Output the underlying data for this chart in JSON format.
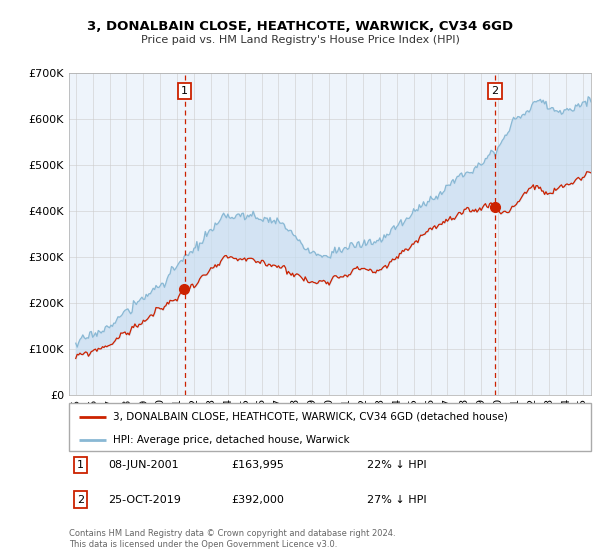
{
  "title": "3, DONALBAIN CLOSE, HEATHCOTE, WARWICK, CV34 6GD",
  "subtitle": "Price paid vs. HM Land Registry's House Price Index (HPI)",
  "legend_line1": "3, DONALBAIN CLOSE, HEATHCOTE, WARWICK, CV34 6GD (detached house)",
  "legend_line2": "HPI: Average price, detached house, Warwick",
  "marker1_date": "08-JUN-2001",
  "marker1_price": 163995,
  "marker1_label": "22% ↓ HPI",
  "marker1_x": 2001.44,
  "marker1_y": 163995,
  "marker2_date": "25-OCT-2019",
  "marker2_price": 392000,
  "marker2_label": "27% ↓ HPI",
  "marker2_x": 2019.81,
  "marker2_y": 392000,
  "note": "Contains HM Land Registry data © Crown copyright and database right 2024.\nThis data is licensed under the Open Government Licence v3.0.",
  "hpi_color": "#89b8d4",
  "price_color": "#cc2200",
  "marker_color": "#cc2200",
  "fill_color": "#ddeeff",
  "background_color": "#ffffff",
  "grid_color": "#cccccc",
  "ylim": [
    0,
    700000
  ],
  "xlim_start": 1994.6,
  "xlim_end": 2025.5,
  "seed_hpi": 17,
  "seed_price": 99
}
